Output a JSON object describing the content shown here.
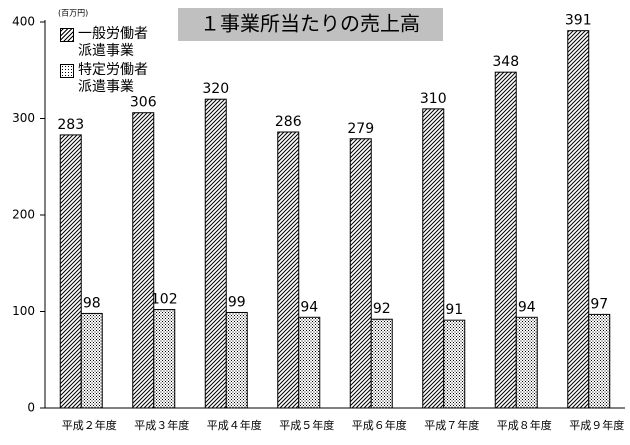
{
  "chart_data": {
    "type": "bar",
    "title": "１事業所当たりの売上高",
    "unit_label": "(百万円)",
    "categories": [
      "平成２年度",
      "平成３年度",
      "平成４年度",
      "平成５年度",
      "平成６年度",
      "平成７年度",
      "平成８年度",
      "平成９年度"
    ],
    "series": [
      {
        "name": "一般労働者\n派遣事業",
        "color": "#000000",
        "hatch": "diagonal",
        "values": [
          283,
          306,
          320,
          286,
          279,
          310,
          348,
          391
        ]
      },
      {
        "name": "特定労働者\n派遣事業",
        "color": "#000000",
        "hatch": "dots",
        "values": [
          98,
          102,
          99,
          94,
          92,
          91,
          94,
          97
        ]
      }
    ],
    "ylim": [
      0,
      400
    ],
    "yticks": [
      0,
      100,
      200,
      300,
      400
    ],
    "grid": false
  }
}
